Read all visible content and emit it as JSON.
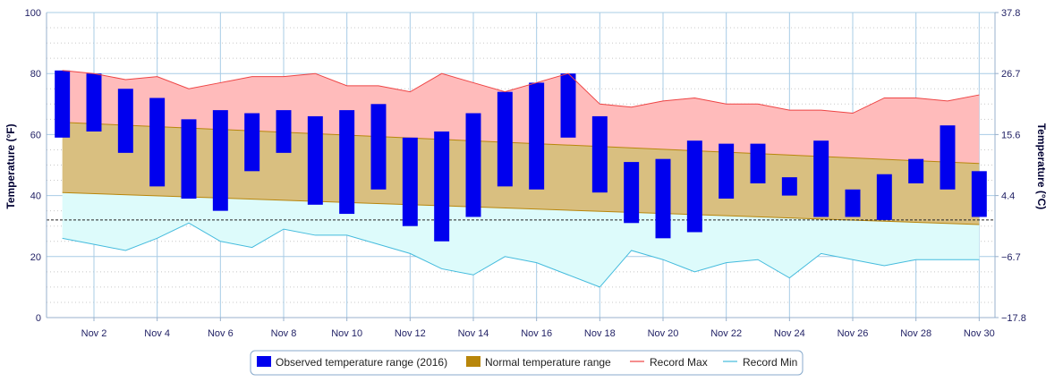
{
  "chart_data": {
    "type": "bar",
    "title": "",
    "ylabel_left": "Temperature (°F)",
    "ylabel_right": "Temperature (°C)",
    "ylim": [
      0,
      100
    ],
    "xlim": [
      0.5,
      30.5
    ],
    "y_ticks_left": [
      "0",
      "20",
      "40",
      "60",
      "80",
      "100"
    ],
    "y_ticks_right": [
      "−17.8",
      "−6.7",
      "4.4",
      "15.6",
      "26.7",
      "37.8"
    ],
    "x_ticks": [
      "Nov 2",
      "Nov 4",
      "Nov 6",
      "Nov 8",
      "Nov 10",
      "Nov 12",
      "Nov 14",
      "Nov 16",
      "Nov 18",
      "Nov 20",
      "Nov 22",
      "Nov 24",
      "Nov 26",
      "Nov 28",
      "Nov 30"
    ],
    "x_tick_days": [
      2,
      4,
      6,
      8,
      10,
      12,
      14,
      16,
      18,
      20,
      22,
      24,
      26,
      28,
      30
    ],
    "freezing_line": 32,
    "legend_position": "bottom-center",
    "grid": true,
    "colors": {
      "observed": "#0000ee",
      "normal": "#b8860b",
      "normal_fill": "#d9bf80",
      "record_max": "#ee4444",
      "record_max_fill": "#ffbbbb",
      "record_min": "#44bbdd",
      "record_min_fill": "#ddfbfb",
      "grid_major": "#a8cce6",
      "grid_minor": "#c8c8c8"
    },
    "days": [
      1,
      2,
      3,
      4,
      5,
      6,
      7,
      8,
      9,
      10,
      11,
      12,
      13,
      14,
      15,
      16,
      17,
      18,
      19,
      20,
      21,
      22,
      23,
      24,
      25,
      26,
      27,
      28,
      29,
      30
    ],
    "series": [
      {
        "name": "Observed temperature range (2016)",
        "type": "range-bar",
        "low": [
          59,
          61,
          54,
          43,
          39,
          35,
          48,
          54,
          37,
          34,
          42,
          30,
          25,
          33,
          43,
          42,
          59,
          41,
          31,
          26,
          28,
          39,
          44,
          40,
          33,
          33,
          32,
          44,
          42,
          33
        ],
        "high": [
          81,
          80,
          75,
          72,
          65,
          68,
          67,
          68,
          66,
          68,
          70,
          59,
          61,
          67,
          74,
          77,
          80,
          66,
          51,
          52,
          58,
          57,
          57,
          46,
          58,
          42,
          47,
          52,
          63,
          48
        ]
      },
      {
        "name": "Normal temperature range",
        "type": "band",
        "low": [
          41,
          30.5
        ],
        "high": [
          64,
          50.5
        ]
      },
      {
        "name": "Record Max",
        "type": "line",
        "values": [
          81,
          80,
          78,
          79,
          75,
          77,
          79,
          79,
          80,
          76,
          76,
          74,
          80,
          77,
          74,
          77,
          80,
          70,
          69,
          71,
          72,
          70,
          70,
          68,
          68,
          67,
          72,
          72,
          71,
          73
        ]
      },
      {
        "name": "Record Min",
        "type": "line",
        "values": [
          26,
          24,
          22,
          26,
          31,
          25,
          23,
          29,
          27,
          27,
          24,
          21,
          16,
          14,
          20,
          18,
          14,
          10,
          22,
          19,
          15,
          18,
          19,
          13,
          21,
          19,
          17,
          19,
          19,
          19
        ]
      }
    ]
  }
}
